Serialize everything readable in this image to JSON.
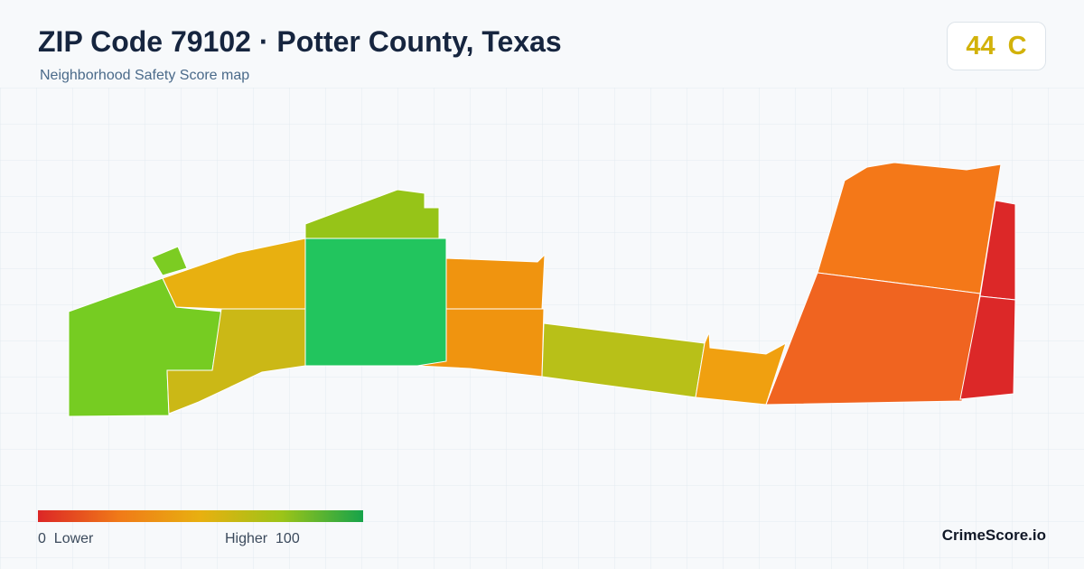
{
  "header": {
    "title": "ZIP Code 79102 · Potter County, Texas",
    "subtitle": "Neighborhood Safety Score map"
  },
  "score": {
    "value": 44,
    "grade": "C"
  },
  "legend": {
    "min": 0,
    "low_label": "Lower",
    "high_label": "Higher",
    "max": 100
  },
  "footer": {
    "brand": "CrimeScore.io"
  }
}
